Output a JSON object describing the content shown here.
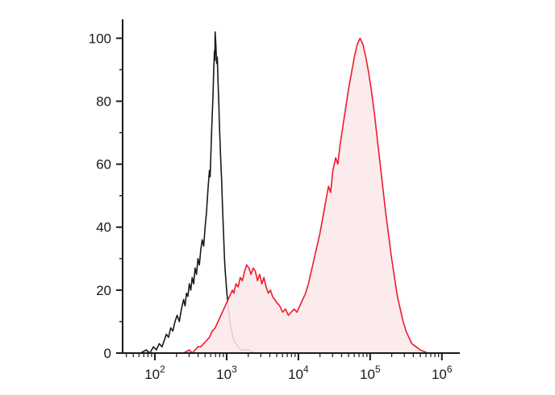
{
  "figure": {
    "background": "#ffffff",
    "title": ""
  },
  "chart_data": {
    "type": "line",
    "subtype": "flow-cytometry-histogram-overlay",
    "title": "",
    "xlabel": "",
    "ylabel": "",
    "x_scale": "log10",
    "xlim_log": [
      1.55,
      6.25
    ],
    "ylim": [
      0,
      106
    ],
    "x_tick_base": "10",
    "x_tick_exponents": [
      2,
      3,
      4,
      5,
      6
    ],
    "y_ticks": [
      0,
      20,
      40,
      60,
      80,
      100
    ],
    "y_minor_ticks": [
      10,
      30,
      50,
      70,
      90
    ],
    "grid": false,
    "legend": "none",
    "axis_color": "#1a1a1a",
    "series": [
      {
        "name": "black-outline-histogram",
        "color": "#1a1a1a",
        "fill": "none",
        "stroke_width": 1.6,
        "points": [
          [
            1.7,
            0
          ],
          [
            1.8,
            0
          ],
          [
            1.88,
            1
          ],
          [
            1.93,
            0
          ],
          [
            1.98,
            2
          ],
          [
            2.02,
            1
          ],
          [
            2.06,
            3
          ],
          [
            2.1,
            2
          ],
          [
            2.13,
            4
          ],
          [
            2.16,
            6
          ],
          [
            2.19,
            5
          ],
          [
            2.22,
            8
          ],
          [
            2.25,
            7
          ],
          [
            2.28,
            10
          ],
          [
            2.31,
            12
          ],
          [
            2.34,
            10
          ],
          [
            2.37,
            14
          ],
          [
            2.4,
            17
          ],
          [
            2.42,
            15
          ],
          [
            2.44,
            19
          ],
          [
            2.46,
            18
          ],
          [
            2.48,
            22
          ],
          [
            2.5,
            20
          ],
          [
            2.52,
            24
          ],
          [
            2.54,
            22
          ],
          [
            2.56,
            27
          ],
          [
            2.58,
            25
          ],
          [
            2.6,
            30
          ],
          [
            2.62,
            28
          ],
          [
            2.64,
            33
          ],
          [
            2.66,
            36
          ],
          [
            2.68,
            34
          ],
          [
            2.7,
            40
          ],
          [
            2.72,
            45
          ],
          [
            2.74,
            52
          ],
          [
            2.76,
            58
          ],
          [
            2.77,
            56
          ],
          [
            2.78,
            63
          ],
          [
            2.79,
            70
          ],
          [
            2.8,
            76
          ],
          [
            2.81,
            82
          ],
          [
            2.82,
            90
          ],
          [
            2.83,
            96
          ],
          [
            2.835,
            93
          ],
          [
            2.84,
            102
          ],
          [
            2.85,
            98
          ],
          [
            2.86,
            92
          ],
          [
            2.87,
            94
          ],
          [
            2.88,
            86
          ],
          [
            2.89,
            80
          ],
          [
            2.9,
            72
          ],
          [
            2.91,
            66
          ],
          [
            2.92,
            60
          ],
          [
            2.93,
            55
          ],
          [
            2.94,
            48
          ],
          [
            2.95,
            42
          ],
          [
            2.96,
            36
          ],
          [
            2.97,
            30
          ],
          [
            2.98,
            26
          ],
          [
            3.0,
            20
          ],
          [
            3.02,
            15
          ],
          [
            3.04,
            11
          ],
          [
            3.06,
            8
          ],
          [
            3.08,
            6
          ],
          [
            3.1,
            4
          ],
          [
            3.13,
            3
          ],
          [
            3.16,
            2
          ],
          [
            3.2,
            1
          ],
          [
            3.3,
            1
          ],
          [
            3.4,
            0
          ],
          [
            3.5,
            0
          ]
        ]
      },
      {
        "name": "red-filled-histogram",
        "color": "#ec1b2e",
        "fill": "rgba(252,232,234,0.88)",
        "stroke_width": 1.6,
        "points": [
          [
            2.3,
            0
          ],
          [
            2.4,
            0
          ],
          [
            2.48,
            1
          ],
          [
            2.52,
            0
          ],
          [
            2.56,
            1
          ],
          [
            2.6,
            2
          ],
          [
            2.64,
            2
          ],
          [
            2.68,
            3
          ],
          [
            2.72,
            4
          ],
          [
            2.76,
            5
          ],
          [
            2.8,
            7
          ],
          [
            2.84,
            8
          ],
          [
            2.88,
            10
          ],
          [
            2.92,
            12
          ],
          [
            2.96,
            14
          ],
          [
            3.0,
            16
          ],
          [
            3.04,
            18
          ],
          [
            3.08,
            20
          ],
          [
            3.1,
            19
          ],
          [
            3.13,
            22
          ],
          [
            3.16,
            21
          ],
          [
            3.19,
            24
          ],
          [
            3.22,
            23
          ],
          [
            3.25,
            26
          ],
          [
            3.28,
            28
          ],
          [
            3.31,
            27
          ],
          [
            3.34,
            25
          ],
          [
            3.37,
            27
          ],
          [
            3.4,
            26
          ],
          [
            3.43,
            23
          ],
          [
            3.46,
            25
          ],
          [
            3.49,
            22
          ],
          [
            3.52,
            24
          ],
          [
            3.55,
            21
          ],
          [
            3.58,
            19
          ],
          [
            3.61,
            20
          ],
          [
            3.64,
            18
          ],
          [
            3.67,
            17
          ],
          [
            3.7,
            16
          ],
          [
            3.74,
            15
          ],
          [
            3.78,
            13
          ],
          [
            3.82,
            14
          ],
          [
            3.86,
            12
          ],
          [
            3.9,
            13
          ],
          [
            3.94,
            14
          ],
          [
            3.98,
            13
          ],
          [
            4.02,
            15
          ],
          [
            4.06,
            17
          ],
          [
            4.1,
            19
          ],
          [
            4.14,
            22
          ],
          [
            4.18,
            26
          ],
          [
            4.22,
            30
          ],
          [
            4.26,
            34
          ],
          [
            4.3,
            38
          ],
          [
            4.34,
            43
          ],
          [
            4.38,
            48
          ],
          [
            4.42,
            53
          ],
          [
            4.45,
            51
          ],
          [
            4.48,
            58
          ],
          [
            4.52,
            62
          ],
          [
            4.55,
            60
          ],
          [
            4.58,
            66
          ],
          [
            4.62,
            72
          ],
          [
            4.66,
            78
          ],
          [
            4.7,
            84
          ],
          [
            4.74,
            89
          ],
          [
            4.78,
            94
          ],
          [
            4.82,
            98
          ],
          [
            4.86,
            100
          ],
          [
            4.9,
            98
          ],
          [
            4.94,
            94
          ],
          [
            4.98,
            89
          ],
          [
            5.02,
            83
          ],
          [
            5.06,
            76
          ],
          [
            5.1,
            68
          ],
          [
            5.14,
            60
          ],
          [
            5.18,
            52
          ],
          [
            5.22,
            44
          ],
          [
            5.26,
            37
          ],
          [
            5.3,
            30
          ],
          [
            5.34,
            24
          ],
          [
            5.38,
            18
          ],
          [
            5.42,
            14
          ],
          [
            5.46,
            10
          ],
          [
            5.5,
            7
          ],
          [
            5.54,
            5
          ],
          [
            5.58,
            3
          ],
          [
            5.64,
            2
          ],
          [
            5.7,
            1
          ],
          [
            5.8,
            0
          ],
          [
            5.9,
            0
          ]
        ]
      }
    ]
  }
}
